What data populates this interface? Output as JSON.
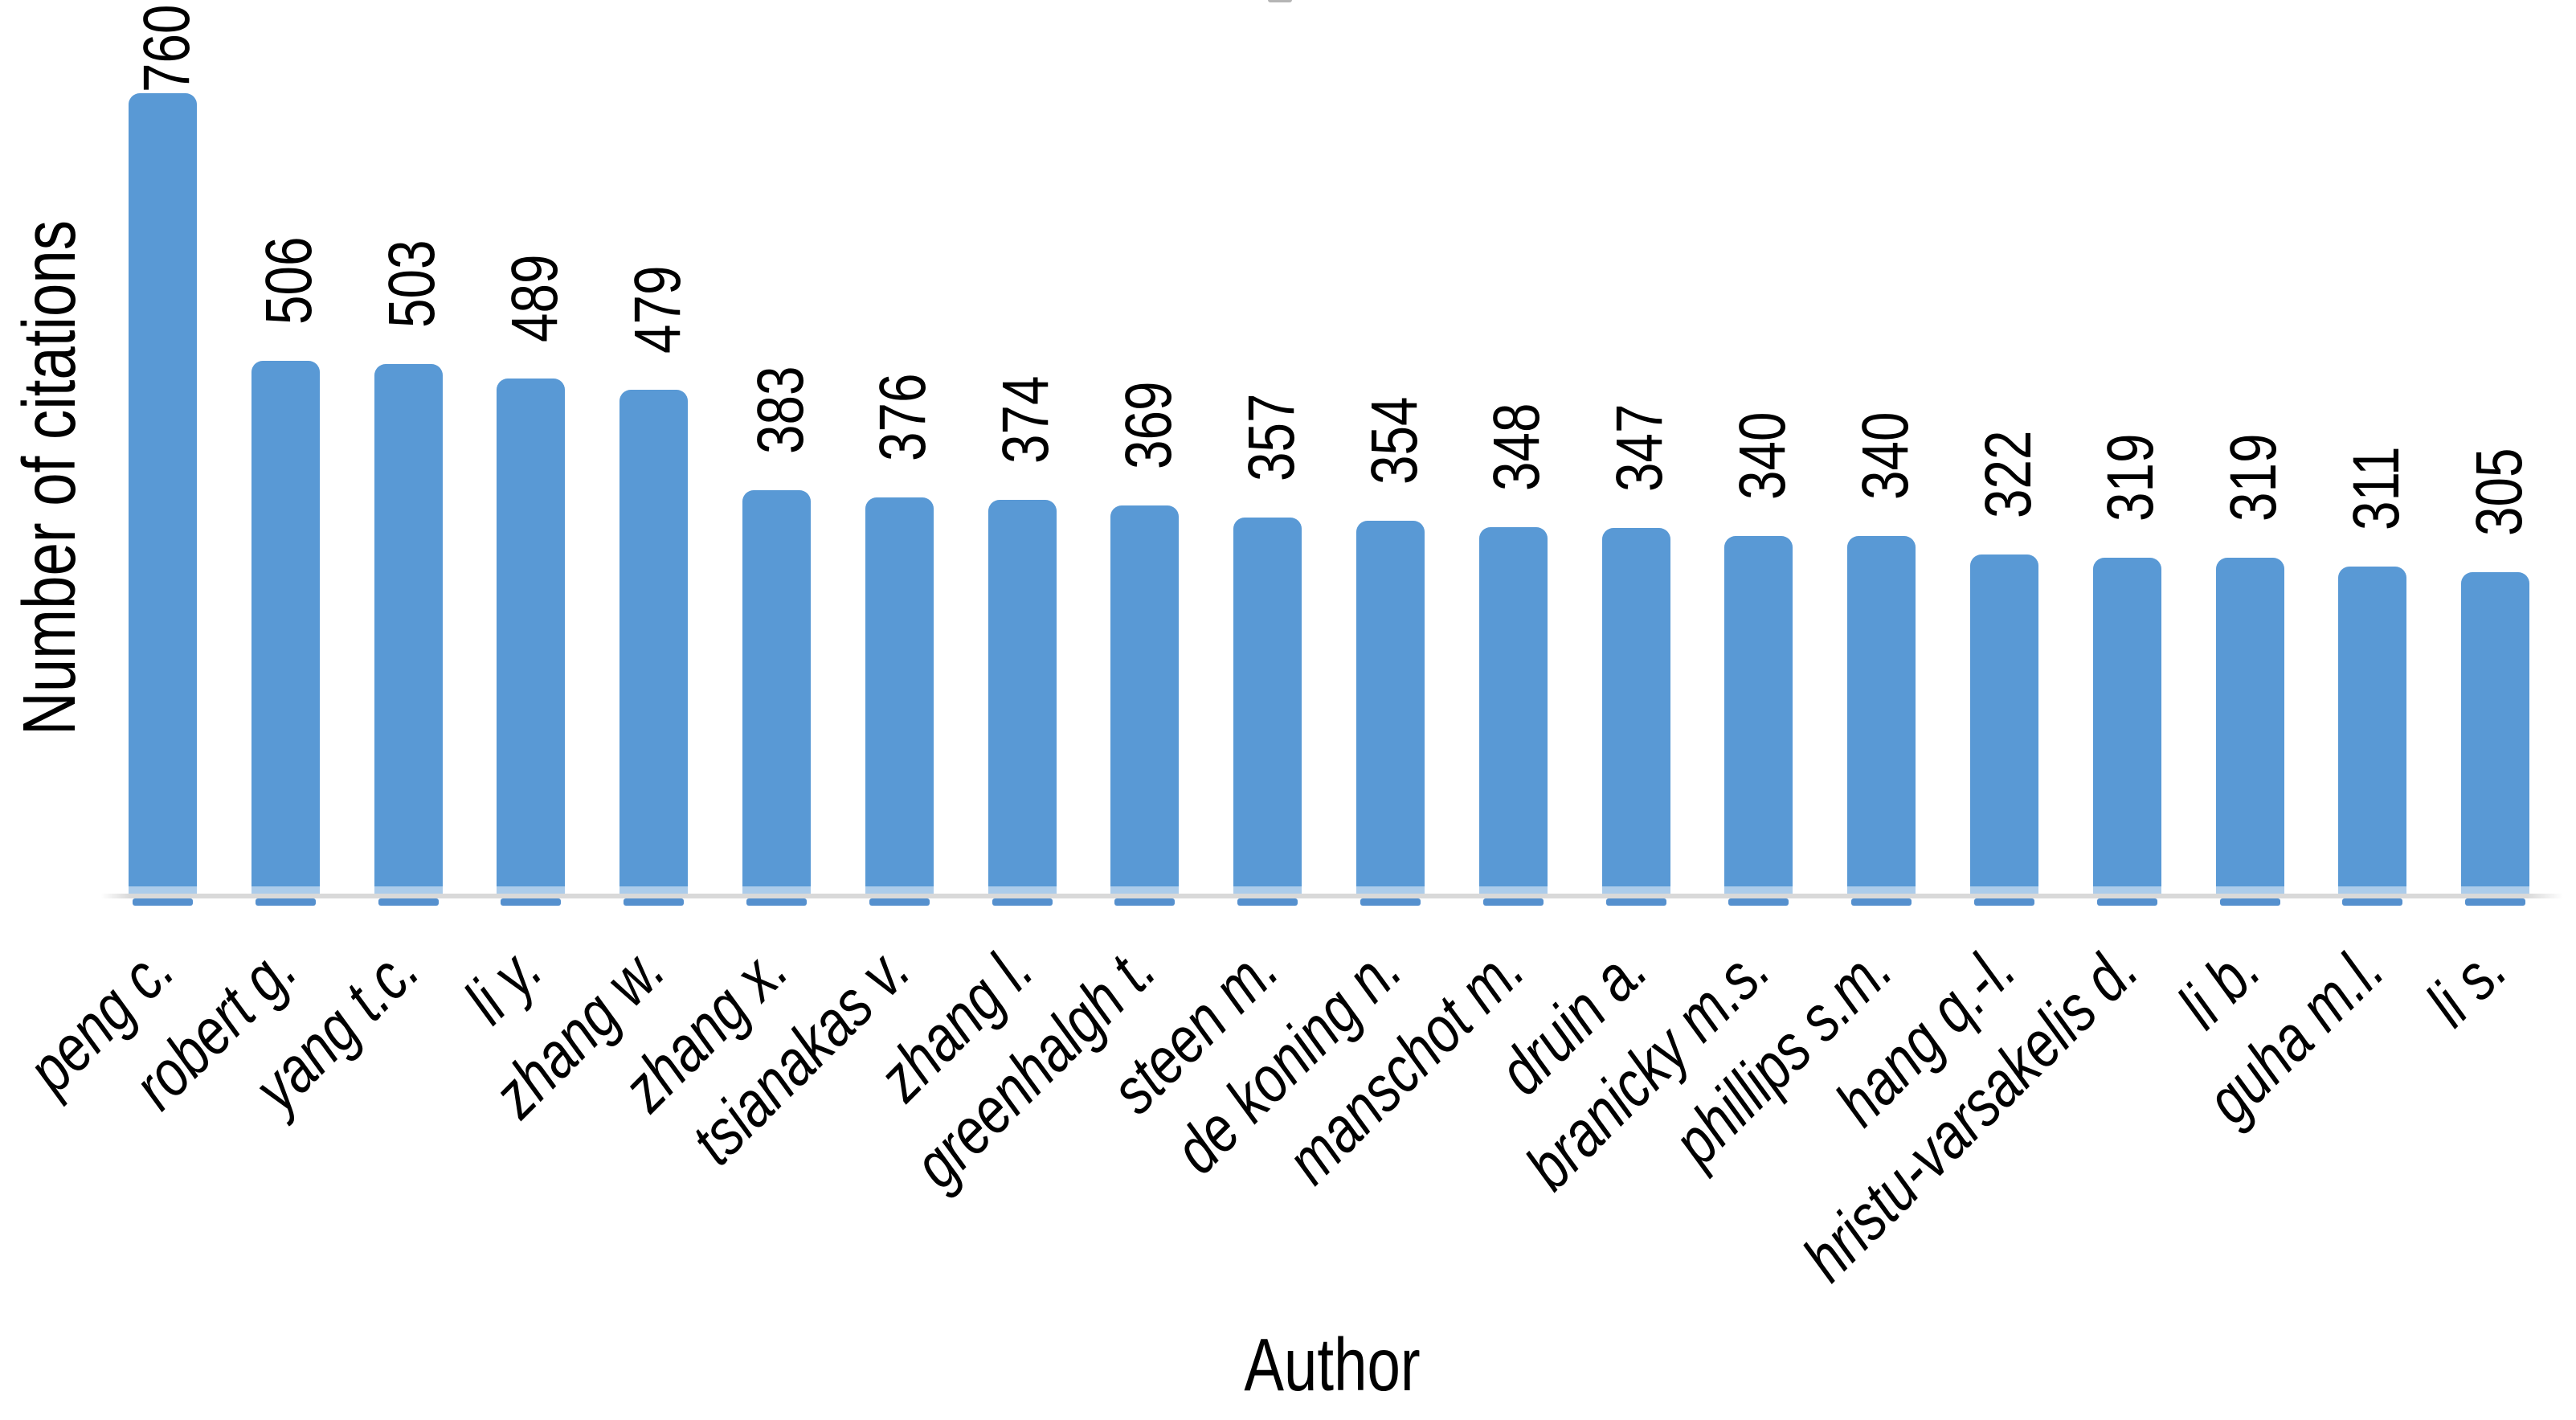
{
  "chart_data": {
    "type": "bar",
    "xlabel": "Author",
    "ylabel": "Number of citations",
    "categories": [
      "peng c.",
      "robert g.",
      "yang t.c.",
      "li y.",
      "zhang w.",
      "zhang x.",
      "tsianakas v.",
      "zhang l.",
      "greenhalgh t.",
      "steen m.",
      "de koning n.",
      "manschot m.",
      "druin a.",
      "branicky m.s.",
      "phillips s.m.",
      "hang q.-l.",
      "hristu-varsakelis d.",
      "li b.",
      "guha m.l.",
      "li s."
    ],
    "values": [
      760,
      506,
      503,
      489,
      479,
      383,
      376,
      374,
      369,
      357,
      354,
      348,
      347,
      340,
      340,
      322,
      319,
      319,
      311,
      305
    ],
    "data_labels_shown": true,
    "data_label_rotation_deg": -90,
    "category_label_rotation_deg": -45,
    "category_label_style": "italic",
    "bar_color": "#5999d5",
    "bar_underline_color": "#5590ce",
    "axis_line_color": "#d9d9d9",
    "text_color": "#000000",
    "background_color": "#ffffff",
    "ylim": [
      0,
      850
    ],
    "grid": false,
    "legend": "none"
  }
}
